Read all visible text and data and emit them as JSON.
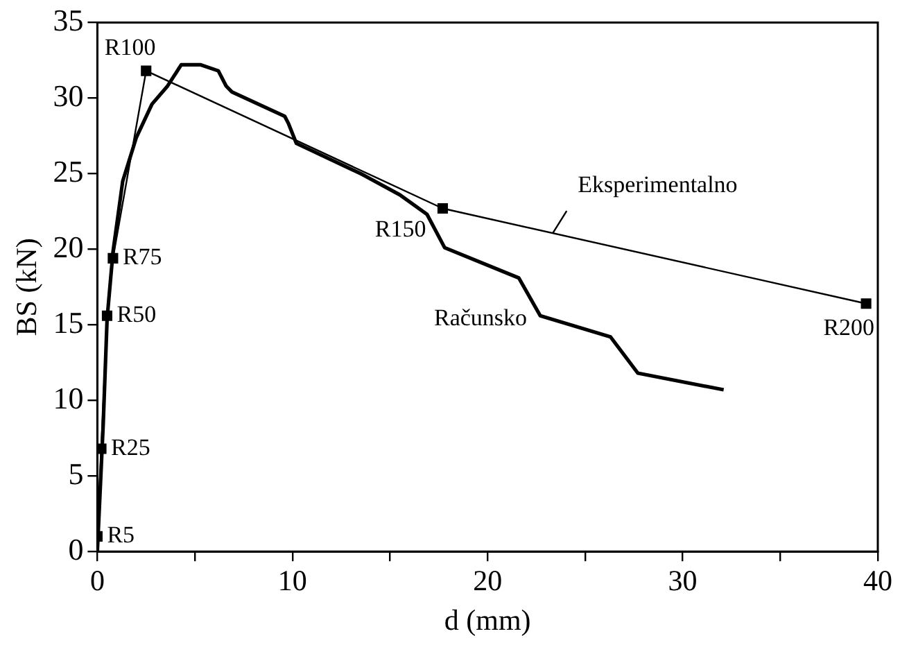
{
  "chart_data": {
    "type": "line",
    "xlabel": "d (mm)",
    "ylabel": "BS (kN)",
    "xlim": [
      0,
      40
    ],
    "ylim": [
      0,
      35
    ],
    "xticks": [
      0,
      {
        "value": 5,
        "label": null
      },
      10,
      {
        "value": 15,
        "label": null
      },
      20,
      {
        "value": 25,
        "label": null
      },
      30,
      {
        "value": 35,
        "label": null
      },
      40
    ],
    "yticks": [
      0,
      5,
      10,
      15,
      20,
      25,
      30,
      35
    ],
    "grid": false,
    "legend": false,
    "series": [
      {
        "name": "Eksperimentalno",
        "color": "#000000",
        "marker": "square",
        "x": [
          0,
          0.2,
          0.5,
          0.8,
          2.5,
          17.7,
          39.4
        ],
        "values": [
          1,
          6.8,
          15.6,
          19.4,
          31.8,
          22.7,
          16.4
        ]
      },
      {
        "name": "Računsko",
        "color": "#000000",
        "marker": "none",
        "x": [
          0,
          0.3,
          0.5,
          0.8,
          1.3,
          2.0,
          2.8,
          3.6,
          4.3,
          5.3,
          6.2,
          6.6,
          6.9,
          9.6,
          9.8,
          10.2,
          13.5,
          15.5,
          16.9,
          17.8,
          21.6,
          22.7,
          26.3,
          27.7,
          32.1
        ],
        "values": [
          0,
          8.4,
          15.4,
          19.8,
          24.5,
          27.4,
          29.6,
          30.8,
          32.2,
          32.2,
          31.8,
          30.8,
          30.4,
          28.8,
          28.3,
          27.0,
          25.0,
          23.6,
          22.3,
          20.1,
          18.1,
          15.6,
          14.2,
          11.8,
          10.7
        ]
      }
    ],
    "annotations": [
      {
        "text": "R5",
        "x": 0,
        "y": 1
      },
      {
        "text": "R25",
        "x": 0.2,
        "y": 6.8
      },
      {
        "text": "R50",
        "x": 0.5,
        "y": 15.6
      },
      {
        "text": "R75",
        "x": 0.8,
        "y": 19.4
      },
      {
        "text": "R100",
        "x": 2.5,
        "y": 31.8
      },
      {
        "text": "R150",
        "x": 17.7,
        "y": 22.7
      },
      {
        "text": "R200",
        "x": 39.4,
        "y": 16.4
      }
    ]
  }
}
